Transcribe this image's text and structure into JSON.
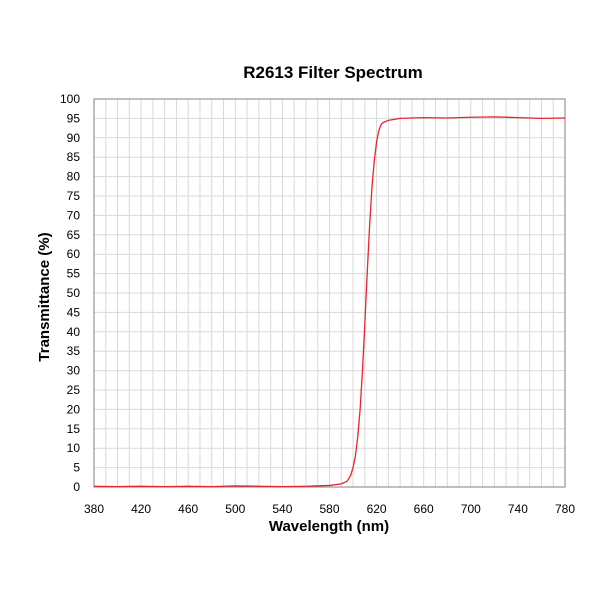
{
  "chart_data": {
    "type": "line",
    "title": "R2613 Filter Spectrum",
    "xlabel": "Wavelength (nm)",
    "ylabel": "Transmittance (%)",
    "xlim": [
      380,
      780
    ],
    "ylim": [
      0,
      100
    ],
    "x_ticks": [
      380,
      420,
      460,
      500,
      540,
      580,
      620,
      660,
      700,
      740,
      780
    ],
    "y_ticks": [
      0,
      5,
      10,
      15,
      20,
      25,
      30,
      35,
      40,
      45,
      50,
      55,
      60,
      65,
      70,
      75,
      80,
      85,
      90,
      95,
      100
    ],
    "x_minor_step": 10,
    "grid": true,
    "legend": "none",
    "colors": {
      "series": "#e8252b",
      "grid": "#d9d9d9",
      "frame": "#808080"
    },
    "series": [
      {
        "color": "#e8252b",
        "x": [
          380,
          400,
          420,
          440,
          460,
          480,
          500,
          520,
          540,
          560,
          580,
          590,
          595,
          598,
          600,
          602,
          604,
          606,
          608,
          610,
          612,
          614,
          616,
          618,
          620,
          622,
          624,
          626,
          630,
          640,
          660,
          680,
          700,
          720,
          740,
          760,
          780
        ],
        "y": [
          0.2,
          0.1,
          0.2,
          0.1,
          0.2,
          0.1,
          0.3,
          0.2,
          0.1,
          0.2,
          0.4,
          0.8,
          1.5,
          3.0,
          5.0,
          8.0,
          13.0,
          20.0,
          30.0,
          42.0,
          55.0,
          67.0,
          77.0,
          84.0,
          89.0,
          92.0,
          93.5,
          94.0,
          94.5,
          95.0,
          95.2,
          95.1,
          95.3,
          95.4,
          95.2,
          95.0,
          95.1
        ]
      }
    ]
  }
}
